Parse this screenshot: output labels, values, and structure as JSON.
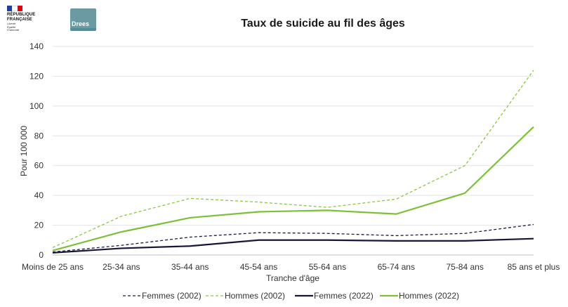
{
  "logos": {
    "republique_lines": [
      "RÉPUBLIQUE",
      "FRANÇAISE"
    ],
    "republique_motto": [
      "Liberté",
      "Égalité",
      "Fraternité"
    ],
    "drees": "Drees"
  },
  "chart_data": {
    "type": "line",
    "title": "Taux de suicide au fil des âges",
    "xlabel": "Tranche d'âge",
    "ylabel": "Pour 100 000",
    "ylim": [
      0,
      140
    ],
    "yticks": [
      0,
      20,
      40,
      60,
      80,
      100,
      120,
      140
    ],
    "grid": true,
    "legend_position": "bottom",
    "categories": [
      "Moins de 25 ans",
      "25-34 ans",
      "35-44 ans",
      "45-54 ans",
      "55-64 ans",
      "65-74 ans",
      "75-84 ans",
      "85 ans et plus"
    ],
    "series": [
      {
        "name": "Femmes (2002)",
        "color": "#1a1a3a",
        "dashed": true,
        "values": [
          2,
          6.5,
          12,
          15,
          14.5,
          13,
          14.5,
          20.5
        ]
      },
      {
        "name": "Hommes (2002)",
        "color": "#8cc63f",
        "dashed": true,
        "values": [
          5,
          26,
          38,
          35.5,
          32,
          37.5,
          60,
          124
        ]
      },
      {
        "name": "Femmes (2022)",
        "color": "#16163a",
        "dashed": false,
        "values": [
          1.5,
          4.5,
          6,
          10,
          10,
          9.5,
          9.5,
          11
        ]
      },
      {
        "name": "Hommes (2022)",
        "color": "#7cc03a",
        "dashed": false,
        "values": [
          3,
          15.5,
          25,
          29,
          30,
          27.5,
          41.5,
          86
        ]
      }
    ]
  }
}
